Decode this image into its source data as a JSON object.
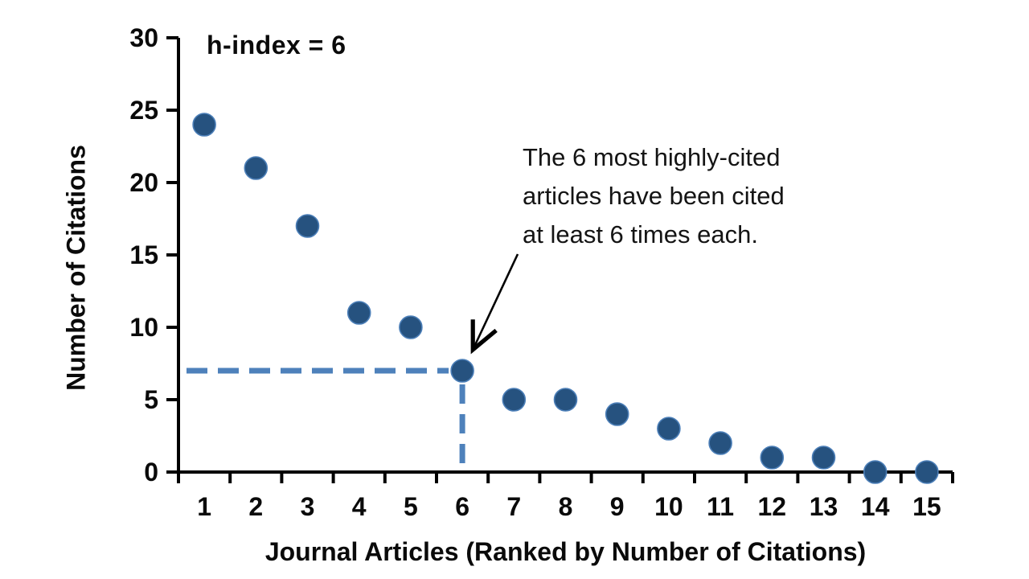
{
  "chart_data": {
    "type": "scatter",
    "title": "h-index = 6",
    "xlabel": "Journal Articles (Ranked by Number of Citations)",
    "ylabel": "Number of Citations",
    "x": [
      1,
      2,
      3,
      4,
      5,
      6,
      7,
      8,
      9,
      10,
      11,
      12,
      13,
      14,
      15
    ],
    "values": [
      24,
      21,
      17,
      11,
      10,
      7,
      5,
      5,
      4,
      3,
      2,
      1,
      1,
      0,
      0
    ],
    "ylim": [
      0,
      30
    ],
    "y_ticks": [
      0,
      5,
      10,
      15,
      20,
      25,
      30
    ],
    "grid": false,
    "legend": "none",
    "h_index": 6,
    "highlight_point": {
      "x": 6,
      "y": 7
    },
    "dashed_guides": {
      "horizontal_at_y": 7,
      "vertical_at_x": 6
    },
    "annotation": {
      "lines": [
        "The 6 most highly-cited",
        "articles have been cited",
        "at least 6 times each."
      ]
    },
    "colors": {
      "marker_fill": "#26527F",
      "marker_edge": "#4C7FB8",
      "dash_line": "#4E81BB",
      "axis": "#000000",
      "text": "#0a0a0a",
      "arrow": "#000000"
    }
  }
}
